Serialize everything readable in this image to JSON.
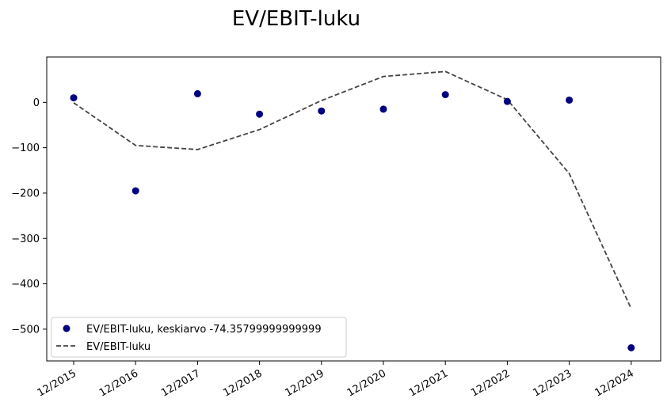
{
  "chart_data": {
    "type": "scatter+line",
    "title": "EV/EBIT-luku",
    "categories": [
      "12/2015",
      "12/2016",
      "12/2017",
      "12/2018",
      "12/2019",
      "12/2020",
      "12/2021",
      "12/2022",
      "12/2023",
      "12/2024"
    ],
    "series": [
      {
        "name": "EV/EBIT-luku, keskiarvo -74.35799999999999",
        "kind": "scatter",
        "color": "#000080",
        "values": [
          10,
          -195,
          19,
          -26,
          -19,
          -15,
          17,
          2,
          5,
          -541
        ]
      },
      {
        "name": "EV/EBIT-luku",
        "kind": "line",
        "style": "dashed",
        "color": "#444444",
        "values": [
          -1,
          -95,
          -104,
          -60,
          4,
          57,
          68,
          6,
          -157,
          -455
        ]
      }
    ],
    "yticks": [
      0,
      -100,
      -200,
      -300,
      -400,
      -500
    ],
    "ytick_labels": [
      "0",
      "−100",
      "−200",
      "−300",
      "−400",
      "−500"
    ],
    "ylim": [
      -570,
      100
    ],
    "legend_position": "lower-left",
    "grid": false
  }
}
